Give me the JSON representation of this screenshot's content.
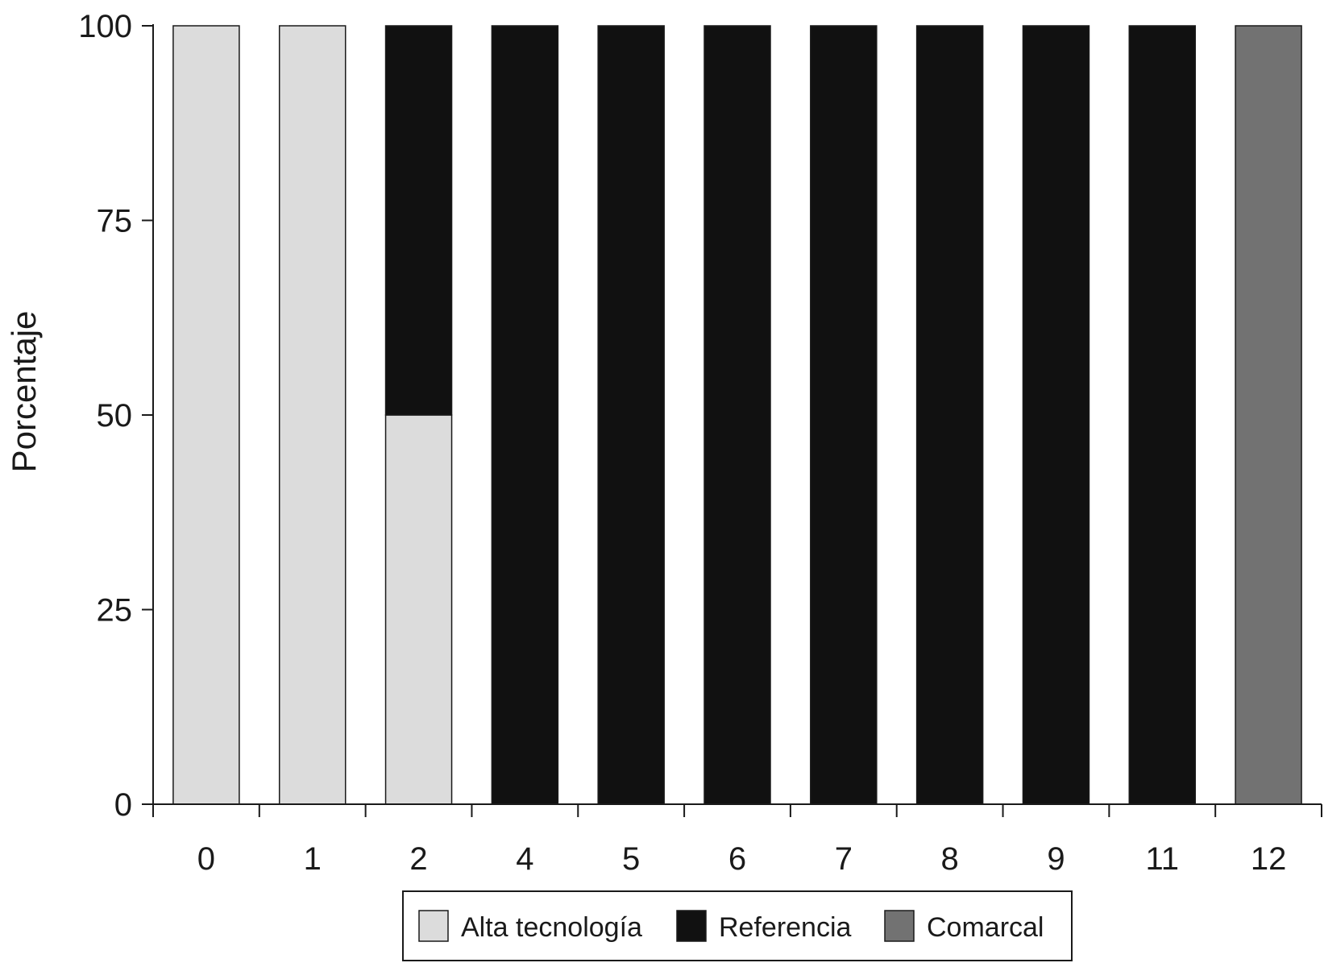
{
  "chart_data": {
    "type": "bar",
    "stacked": true,
    "title": "",
    "xlabel": "",
    "ylabel": "Porcentaje",
    "ylim": [
      0,
      100
    ],
    "yticks": [
      0,
      25,
      50,
      75,
      100
    ],
    "categories": [
      "0",
      "1",
      "2",
      "4",
      "5",
      "6",
      "7",
      "8",
      "9",
      "11",
      "12"
    ],
    "series": [
      {
        "name": "Alta tecnología",
        "color": "#dcdcdc",
        "values": [
          100,
          100,
          50,
          0,
          0,
          0,
          0,
          0,
          0,
          0,
          0
        ]
      },
      {
        "name": "Referencia",
        "color": "#111111",
        "values": [
          0,
          0,
          50,
          100,
          100,
          100,
          100,
          100,
          100,
          100,
          0
        ]
      },
      {
        "name": "Comarcal",
        "color": "#727272",
        "values": [
          0,
          0,
          0,
          0,
          0,
          0,
          0,
          0,
          0,
          0,
          100
        ]
      }
    ],
    "grid": false,
    "legend": "bottom"
  }
}
